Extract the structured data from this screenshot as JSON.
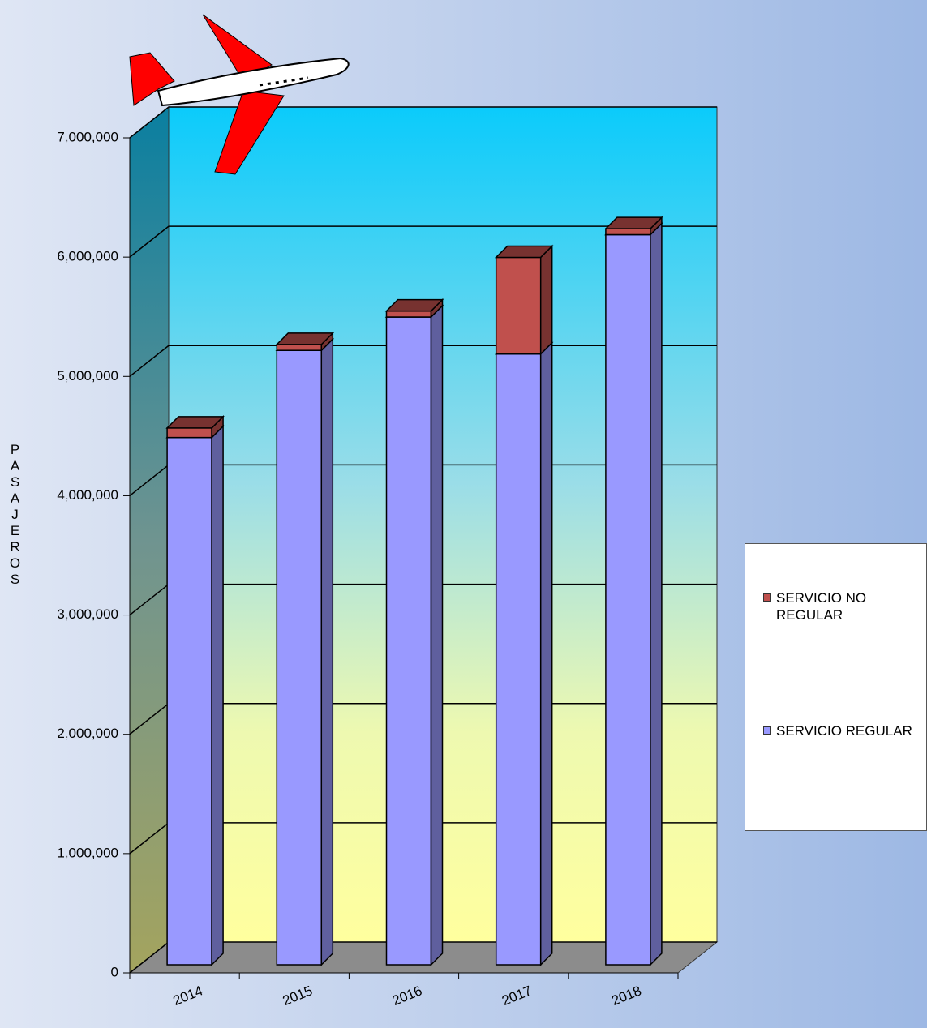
{
  "chart_data": {
    "type": "bar3d_stacked",
    "categories": [
      "2014",
      "2015",
      "2016",
      "2017",
      "2018"
    ],
    "series": [
      {
        "name": "SERVICIO REGULAR",
        "color": "#9999ff",
        "values": [
          4420000,
          5150000,
          5430000,
          5120000,
          6120000
        ]
      },
      {
        "name": "SERVICIO NO REGULAR",
        "color": "#c0504d",
        "values": [
          80000,
          50000,
          50000,
          810000,
          50000
        ]
      }
    ],
    "y_label": "PASAJEROS",
    "ylim": [
      0,
      7000000
    ],
    "yticks": [
      0,
      {
        "value": 1000000,
        "label": "1,000,000"
      },
      {
        "value": 2000000,
        "label": "2,000,000"
      },
      {
        "value": 3000000,
        "label": "3,000,000"
      },
      {
        "value": 4000000,
        "label": "4,000,000"
      },
      {
        "value": 5000000,
        "label": "5,000,000"
      },
      {
        "value": 6000000,
        "label": "6,000,000"
      },
      {
        "value": 7000000,
        "label": "7,000,000"
      }
    ],
    "grid": true,
    "legend": "right"
  }
}
